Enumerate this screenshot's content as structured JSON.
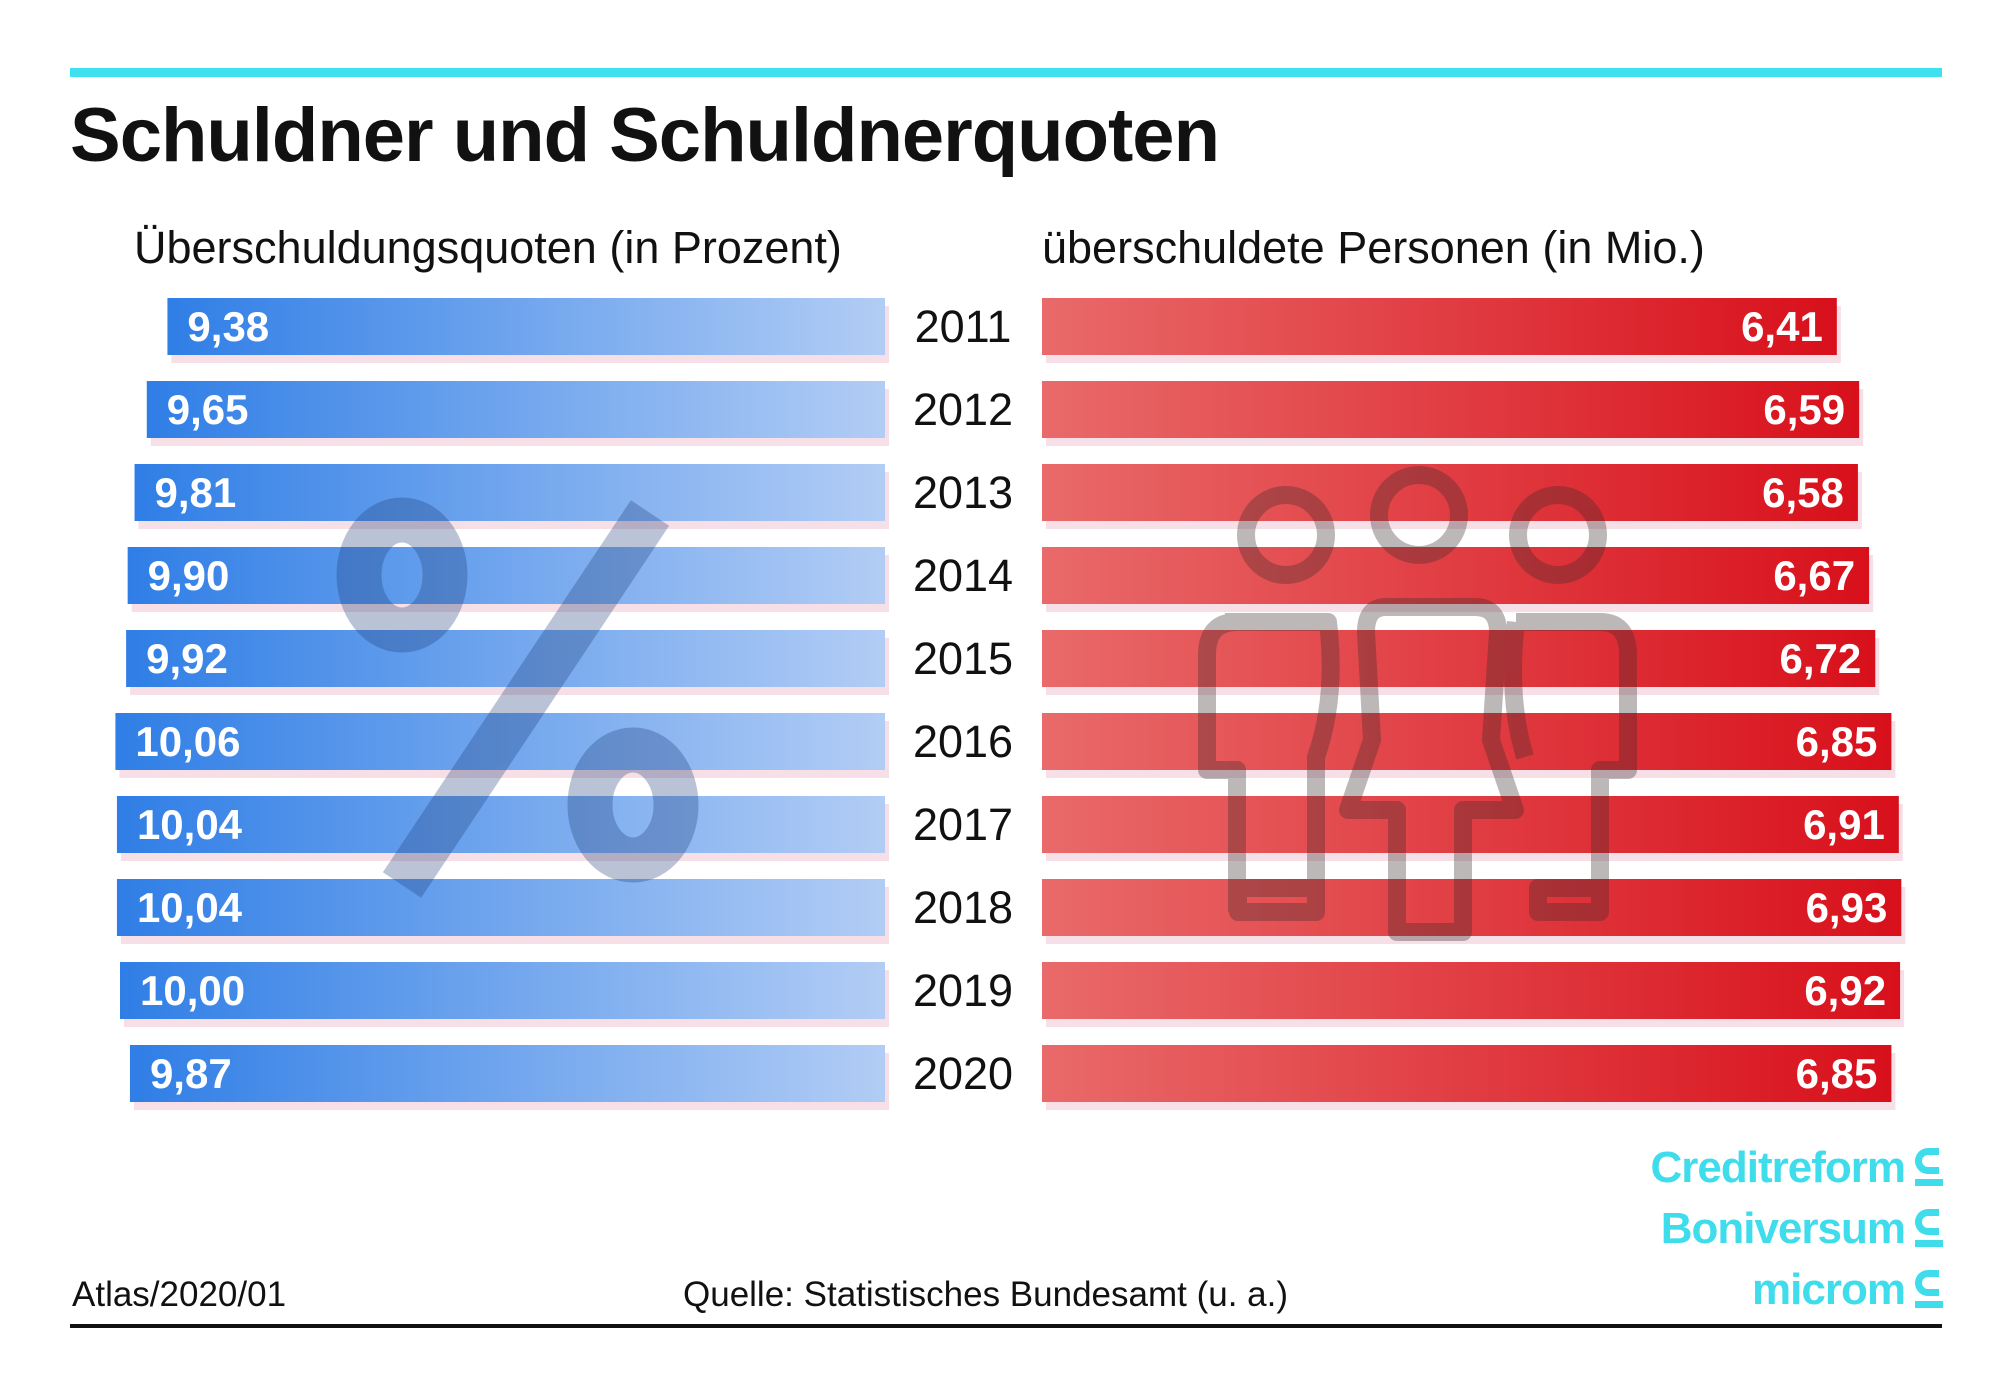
{
  "title": "Schuldner und Schuldnerquoten",
  "footer": {
    "left": "Atlas/2020/01",
    "source": "Quelle: Statistisches Bundesamt (u. a.)"
  },
  "logos": [
    "Creditreform",
    "Boniversum",
    "microm"
  ],
  "colors": {
    "accent_line": "#3fe0ef",
    "blue_dark": "#2f7ee6",
    "blue_light": "#b2cdf5",
    "red_light": "#e96a6a",
    "red_dark": "#d8101b",
    "logo": "#3fdcec"
  },
  "icons": [
    "percent-icon",
    "people-icon"
  ],
  "chart_data": {
    "type": "bar",
    "categories": [
      "2011",
      "2012",
      "2013",
      "2014",
      "2015",
      "2016",
      "2017",
      "2018",
      "2019",
      "2020"
    ],
    "series": [
      {
        "name": "Überschuldungsquoten (in Prozent)",
        "values": [
          9.38,
          9.65,
          9.81,
          9.9,
          9.92,
          10.06,
          10.04,
          10.04,
          10.0,
          9.87
        ],
        "labels": [
          "9,38",
          "9,65",
          "9,81",
          "9,90",
          "9,92",
          "10,06",
          "10,04",
          "10,04",
          "10,00",
          "9,87"
        ],
        "direction": "right-to-left"
      },
      {
        "name": "überschuldete Personen (in Mio.)",
        "values": [
          6.41,
          6.59,
          6.58,
          6.67,
          6.72,
          6.85,
          6.91,
          6.93,
          6.92,
          6.85
        ],
        "labels": [
          "6,41",
          "6,59",
          "6,58",
          "6,67",
          "6,72",
          "6,85",
          "6,91",
          "6,93",
          "6,92",
          "6,85"
        ],
        "direction": "left-to-right"
      }
    ]
  }
}
